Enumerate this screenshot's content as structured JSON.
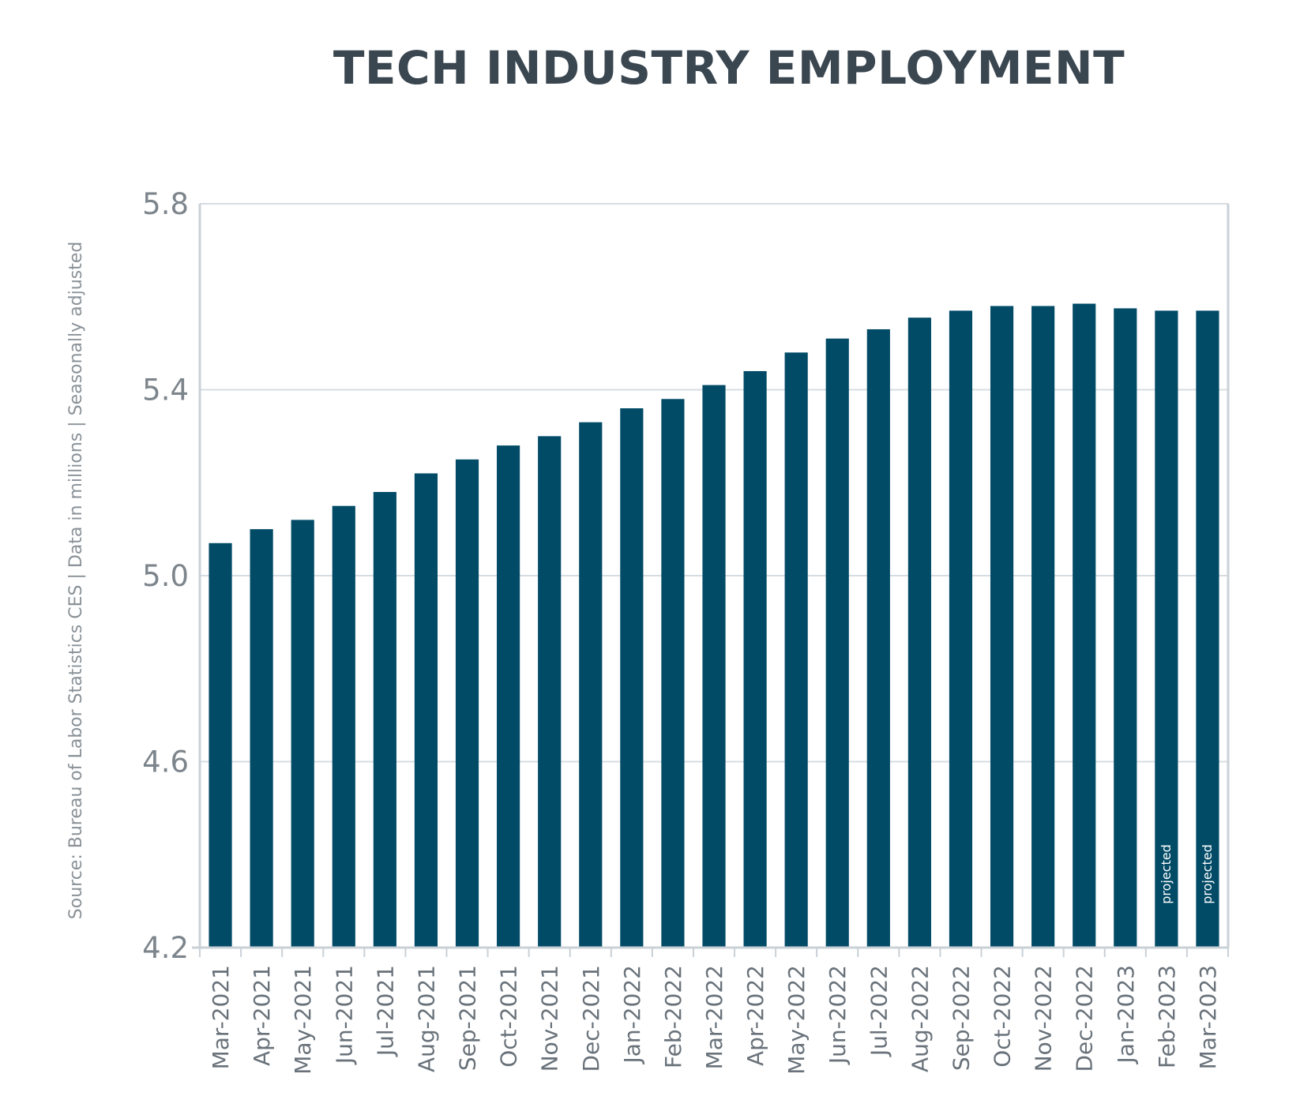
{
  "chart_data": {
    "type": "bar",
    "title": "TECH INDUSTRY EMPLOYMENT",
    "source_note": "Source: Bureau of Labor Statistics CES | Data in millions | Seasonally adjusted",
    "xlabel": "",
    "ylabel": "",
    "ylim": [
      4.2,
      5.8
    ],
    "yticks": [
      "4.2",
      "4.6",
      "5.0",
      "5.4",
      "5.8"
    ],
    "grid": true,
    "bar_color": "#024b67",
    "grid_color": "#d6dde2",
    "axis_color": "#c9d1d7",
    "projected_label": "projected",
    "projected_label_color": "#ffffff",
    "categories": [
      "Mar-2021",
      "Apr-2021",
      "May-2021",
      "Jun-2021",
      "Jul-2021",
      "Aug-2021",
      "Sep-2021",
      "Oct-2021",
      "Nov-2021",
      "Dec-2021",
      "Jan-2022",
      "Feb-2022",
      "Mar-2022",
      "Apr-2022",
      "May-2022",
      "Jun-2022",
      "Jul-2022",
      "Aug-2022",
      "Sep-2022",
      "Oct-2022",
      "Nov-2022",
      "Dec-2022",
      "Jan-2023",
      "Feb-2023",
      "Mar-2023"
    ],
    "values": [
      5.07,
      5.1,
      5.12,
      5.15,
      5.18,
      5.22,
      5.25,
      5.28,
      5.3,
      5.33,
      5.36,
      5.38,
      5.41,
      5.44,
      5.48,
      5.51,
      5.53,
      5.555,
      5.57,
      5.58,
      5.58,
      5.585,
      5.575,
      5.57,
      5.57
    ],
    "projected": [
      false,
      false,
      false,
      false,
      false,
      false,
      false,
      false,
      false,
      false,
      false,
      false,
      false,
      false,
      false,
      false,
      false,
      false,
      false,
      false,
      false,
      false,
      false,
      true,
      true
    ]
  }
}
